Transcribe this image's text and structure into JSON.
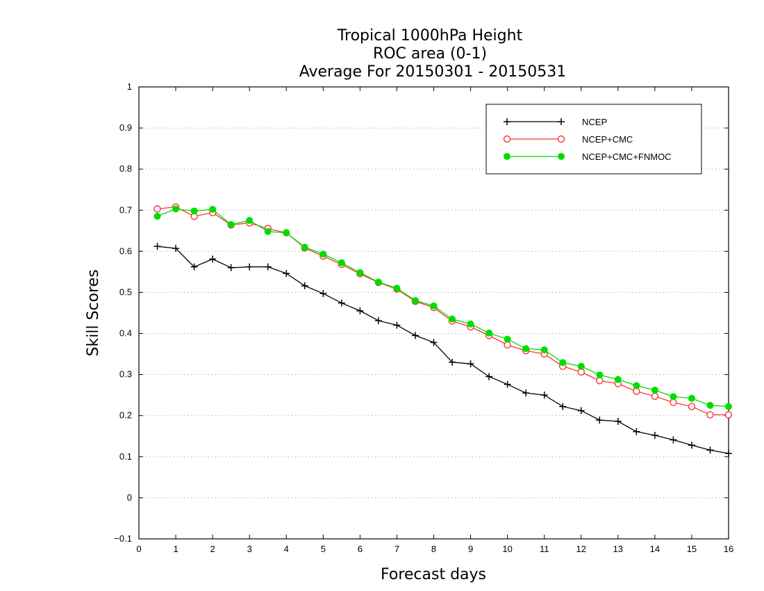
{
  "chart_data": {
    "type": "line",
    "title": [
      "Tropical 1000hPa Height",
      "ROC area (0-1)",
      "Average For 20150301 - 20150531"
    ],
    "xlabel": "Forecast days",
    "ylabel": "Skill Scores",
    "xlim": [
      0,
      16
    ],
    "ylim": [
      -0.1,
      1
    ],
    "x_ticks": [
      "0",
      "1",
      "2",
      "3",
      "4",
      "5",
      "6",
      "7",
      "8",
      "9",
      "10",
      "11",
      "12",
      "13",
      "14",
      "15",
      "16"
    ],
    "y_ticks": [
      "−0.1",
      "0",
      "0.1",
      "0.2",
      "0.3",
      "0.4",
      "0.5",
      "0.6",
      "0.7",
      "0.8",
      "0.9",
      "1"
    ],
    "grid": "horizontal dotted",
    "legend_position": "top-right",
    "x": [
      0.5,
      1,
      1.5,
      2,
      2.5,
      3,
      3.5,
      4,
      4.5,
      5,
      5.5,
      6,
      6.5,
      7,
      7.5,
      8,
      8.5,
      9,
      9.5,
      10,
      10.5,
      11,
      11.5,
      12,
      12.5,
      13,
      13.5,
      14,
      14.5,
      15,
      15.5,
      16
    ],
    "series": [
      {
        "name": "NCEP",
        "color": "#000000",
        "marker": "plus",
        "values": [
          0.612,
          0.607,
          0.562,
          0.581,
          0.56,
          0.562,
          0.562,
          0.546,
          0.516,
          0.497,
          0.474,
          0.455,
          0.431,
          0.42,
          0.395,
          0.378,
          0.33,
          0.326,
          0.295,
          0.276,
          0.255,
          0.25,
          0.222,
          0.212,
          0.189,
          0.186,
          0.161,
          0.152,
          0.141,
          0.128,
          0.116,
          0.108
        ]
      },
      {
        "name": "NCEP+CMC",
        "color": "#ff3333",
        "marker": "open-circle",
        "values": [
          0.703,
          0.708,
          0.685,
          0.694,
          0.664,
          0.669,
          0.655,
          0.645,
          0.608,
          0.588,
          0.568,
          0.545,
          0.524,
          0.508,
          0.478,
          0.463,
          0.43,
          0.416,
          0.395,
          0.372,
          0.358,
          0.35,
          0.32,
          0.306,
          0.285,
          0.278,
          0.259,
          0.247,
          0.232,
          0.222,
          0.202,
          0.202
        ]
      },
      {
        "name": "NCEP+CMC+FNMOC",
        "color": "#00dd00",
        "marker": "filled-circle",
        "values": [
          0.685,
          0.703,
          0.698,
          0.702,
          0.665,
          0.675,
          0.648,
          0.645,
          0.61,
          0.593,
          0.572,
          0.548,
          0.525,
          0.51,
          0.48,
          0.467,
          0.435,
          0.423,
          0.401,
          0.386,
          0.363,
          0.36,
          0.329,
          0.32,
          0.299,
          0.288,
          0.273,
          0.262,
          0.246,
          0.242,
          0.225,
          0.222
        ]
      }
    ]
  }
}
